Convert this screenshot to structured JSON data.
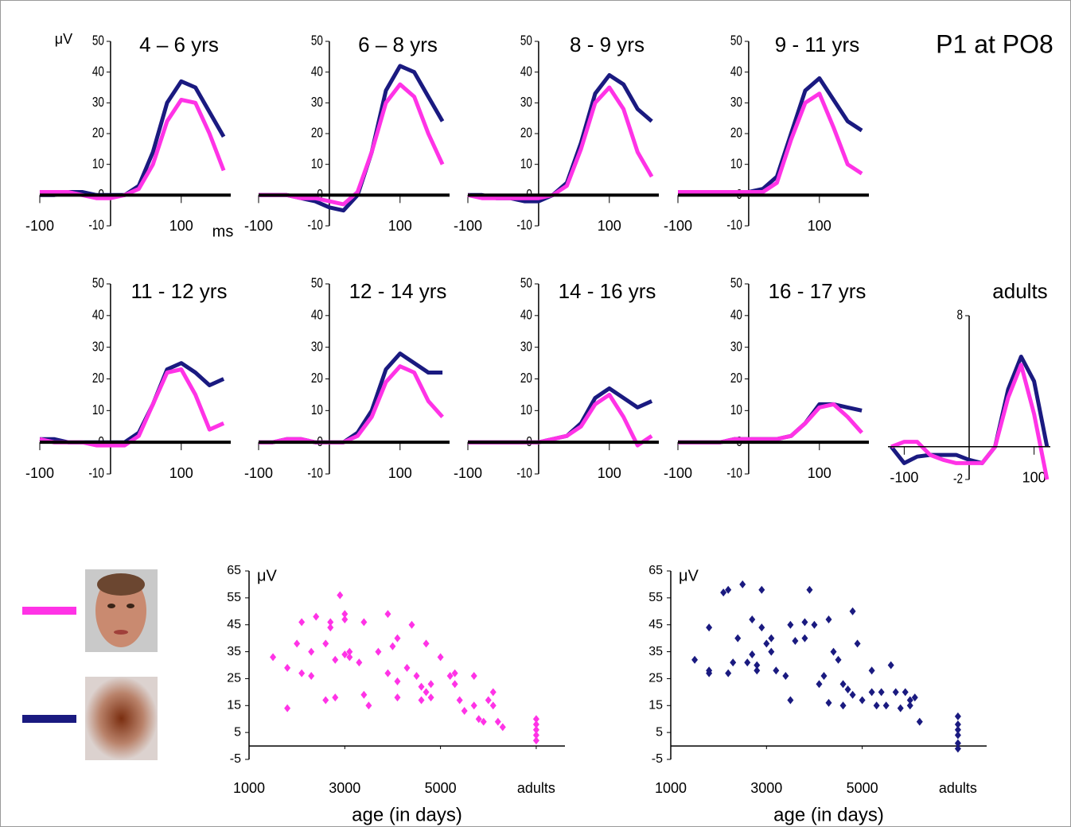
{
  "title": "P1 at PO8",
  "chart_data": [
    {
      "type": "line",
      "title": "4 – 6 yrs",
      "y_label": "μV",
      "x_label": "ms",
      "x": [
        -100,
        -80,
        -60,
        -40,
        -20,
        0,
        20,
        40,
        60,
        80,
        100,
        120,
        140,
        160
      ],
      "xlim": [
        -100,
        170
      ],
      "ylim": [
        -10,
        50
      ],
      "xticks": [
        -100,
        100
      ],
      "yticks": [
        -10,
        0,
        10,
        20,
        30,
        40,
        50
      ],
      "series": [
        {
          "color": "#1a1a80",
          "values": [
            0,
            0,
            1,
            1,
            0,
            0,
            0,
            3,
            14,
            30,
            37,
            35,
            27,
            19
          ]
        },
        {
          "color": "#ff33e6",
          "values": [
            1,
            1,
            1,
            0,
            -1,
            -1,
            0,
            2,
            10,
            24,
            31,
            30,
            20,
            8
          ]
        }
      ]
    },
    {
      "type": "line",
      "title": "6 – 8 yrs",
      "x": [
        -100,
        -80,
        -60,
        -40,
        -20,
        0,
        20,
        40,
        60,
        80,
        100,
        120,
        140,
        160
      ],
      "xlim": [
        -100,
        170
      ],
      "ylim": [
        -10,
        50
      ],
      "xticks": [
        -100,
        100
      ],
      "yticks": [
        -10,
        0,
        10,
        20,
        30,
        40,
        50
      ],
      "series": [
        {
          "color": "#1a1a80",
          "values": [
            0,
            0,
            0,
            -1,
            -2,
            -4,
            -5,
            0,
            14,
            34,
            42,
            40,
            32,
            24
          ]
        },
        {
          "color": "#ff33e6",
          "values": [
            0,
            0,
            0,
            -1,
            -1,
            -2,
            -3,
            1,
            14,
            30,
            36,
            32,
            20,
            10
          ]
        }
      ]
    },
    {
      "type": "line",
      "title": "8 - 9 yrs",
      "x": [
        -100,
        -80,
        -60,
        -40,
        -20,
        0,
        20,
        40,
        60,
        80,
        100,
        120,
        140,
        160
      ],
      "xlim": [
        -100,
        170
      ],
      "ylim": [
        -10,
        50
      ],
      "xticks": [
        -100,
        100
      ],
      "yticks": [
        -10,
        0,
        10,
        20,
        30,
        40,
        50
      ],
      "series": [
        {
          "color": "#1a1a80",
          "values": [
            0,
            0,
            -1,
            -1,
            -2,
            -2,
            0,
            4,
            17,
            33,
            39,
            36,
            28,
            24
          ]
        },
        {
          "color": "#ff33e6",
          "values": [
            0,
            -1,
            -1,
            -1,
            -1,
            -1,
            0,
            3,
            15,
            30,
            35,
            28,
            14,
            6
          ]
        }
      ]
    },
    {
      "type": "line",
      "title": "9 - 11 yrs",
      "x": [
        -100,
        -80,
        -60,
        -40,
        -20,
        0,
        20,
        40,
        60,
        80,
        100,
        120,
        140,
        160
      ],
      "xlim": [
        -100,
        170
      ],
      "ylim": [
        -10,
        50
      ],
      "xticks": [
        -100,
        100
      ],
      "yticks": [
        -10,
        0,
        10,
        20,
        30,
        40,
        50
      ],
      "series": [
        {
          "color": "#1a1a80",
          "values": [
            1,
            1,
            1,
            1,
            1,
            1,
            2,
            6,
            20,
            34,
            38,
            31,
            24,
            21
          ]
        },
        {
          "color": "#ff33e6",
          "values": [
            1,
            1,
            1,
            1,
            1,
            1,
            1,
            4,
            18,
            30,
            33,
            22,
            10,
            7
          ]
        }
      ]
    },
    {
      "type": "line",
      "title": "11 - 12 yrs",
      "x": [
        -100,
        -80,
        -60,
        -40,
        -20,
        0,
        20,
        40,
        60,
        80,
        100,
        120,
        140,
        160
      ],
      "xlim": [
        -100,
        170
      ],
      "ylim": [
        -10,
        50
      ],
      "xticks": [
        -100,
        100
      ],
      "yticks": [
        -10,
        0,
        10,
        20,
        30,
        40,
        50
      ],
      "series": [
        {
          "color": "#1a1a80",
          "values": [
            1,
            1,
            0,
            0,
            0,
            0,
            0,
            3,
            12,
            23,
            25,
            22,
            18,
            20
          ]
        },
        {
          "color": "#ff33e6",
          "values": [
            1,
            0,
            0,
            0,
            -1,
            -1,
            -1,
            2,
            12,
            22,
            23,
            15,
            4,
            6
          ]
        }
      ]
    },
    {
      "type": "line",
      "title": "12 - 14 yrs",
      "x": [
        -100,
        -80,
        -60,
        -40,
        -20,
        0,
        20,
        40,
        60,
        80,
        100,
        120,
        140,
        160
      ],
      "xlim": [
        -100,
        170
      ],
      "ylim": [
        -10,
        50
      ],
      "xticks": [
        -100,
        100
      ],
      "yticks": [
        -10,
        0,
        10,
        20,
        30,
        40,
        50
      ],
      "series": [
        {
          "color": "#1a1a80",
          "values": [
            0,
            0,
            1,
            1,
            0,
            0,
            0,
            3,
            10,
            23,
            28,
            25,
            22,
            22
          ]
        },
        {
          "color": "#ff33e6",
          "values": [
            0,
            0,
            1,
            1,
            0,
            0,
            0,
            2,
            8,
            19,
            24,
            22,
            13,
            8
          ]
        }
      ]
    },
    {
      "type": "line",
      "title": "14 - 16 yrs",
      "x": [
        -100,
        -80,
        -60,
        -40,
        -20,
        0,
        20,
        40,
        60,
        80,
        100,
        120,
        140,
        160
      ],
      "xlim": [
        -100,
        170
      ],
      "ylim": [
        -10,
        50
      ],
      "xticks": [
        -100,
        100
      ],
      "yticks": [
        -10,
        0,
        10,
        20,
        30,
        40,
        50
      ],
      "series": [
        {
          "color": "#1a1a80",
          "values": [
            0,
            0,
            0,
            0,
            0,
            0,
            1,
            2,
            6,
            14,
            17,
            14,
            11,
            13
          ]
        },
        {
          "color": "#ff33e6",
          "values": [
            0,
            0,
            0,
            0,
            0,
            0,
            1,
            2,
            5,
            12,
            15,
            8,
            -1,
            2
          ]
        }
      ]
    },
    {
      "type": "line",
      "title": "16 - 17 yrs",
      "x": [
        -100,
        -80,
        -60,
        -40,
        -20,
        0,
        20,
        40,
        60,
        80,
        100,
        120,
        140,
        160
      ],
      "xlim": [
        -100,
        170
      ],
      "ylim": [
        -10,
        50
      ],
      "xticks": [
        -100,
        100
      ],
      "yticks": [
        -10,
        0,
        10,
        20,
        30,
        40,
        50
      ],
      "series": [
        {
          "color": "#1a1a80",
          "values": [
            0,
            0,
            0,
            0,
            1,
            1,
            1,
            1,
            2,
            6,
            12,
            12,
            11,
            10
          ]
        },
        {
          "color": "#ff33e6",
          "values": [
            0,
            0,
            0,
            0,
            1,
            1,
            1,
            1,
            2,
            6,
            11,
            12,
            8,
            3
          ]
        }
      ]
    },
    {
      "type": "line",
      "title": "adults",
      "x": [
        -120,
        -100,
        -80,
        -60,
        -40,
        -20,
        0,
        20,
        40,
        60,
        80,
        100,
        120
      ],
      "xlim": [
        -125,
        125
      ],
      "ylim": [
        -2,
        8
      ],
      "xticks": [
        -100,
        100
      ],
      "yticks": [
        -2,
        8
      ],
      "series": [
        {
          "color": "#1a1a80",
          "values": [
            0,
            -1,
            -0.6,
            -0.5,
            -0.5,
            -0.5,
            -0.8,
            -1,
            0,
            3.5,
            5.5,
            4,
            0
          ]
        },
        {
          "color": "#ff33e6",
          "values": [
            0,
            0.3,
            0.3,
            -0.5,
            -0.8,
            -1,
            -1,
            -1,
            0,
            3,
            5,
            2,
            -2
          ]
        }
      ]
    },
    {
      "type": "scatter",
      "y_label": "μV",
      "x_label": "age (in days)",
      "xlim": [
        1000,
        7600
      ],
      "ylim": [
        -5,
        65
      ],
      "xticks": [
        1000,
        3000,
        5000,
        {
          "value": 7000,
          "label": "adults"
        }
      ],
      "yticks": [
        -5,
        5,
        15,
        25,
        35,
        45,
        55,
        65
      ],
      "series": [
        {
          "color": "#ff33e6",
          "x": [
            1500,
            1800,
            1800,
            2000,
            2100,
            2100,
            2300,
            2300,
            2400,
            2600,
            2600,
            2700,
            2700,
            2800,
            2900,
            2800,
            3000,
            3000,
            3000,
            3100,
            3100,
            3300,
            3400,
            3400,
            3500,
            3700,
            3900,
            3900,
            4000,
            4100,
            4100,
            4100,
            4300,
            4400,
            4500,
            4600,
            4600,
            4700,
            4700,
            4800,
            4800,
            5000,
            5200,
            5300,
            5300,
            5400,
            5500,
            5700,
            5700,
            5800,
            5900,
            6000,
            6100,
            6100,
            6200,
            6300,
            7000,
            7000,
            7000,
            7000,
            7000
          ],
          "values": [
            33,
            29,
            14,
            38,
            46,
            27,
            26,
            35,
            48,
            38,
            17,
            46,
            44,
            18,
            56,
            32,
            47,
            49,
            34,
            35,
            33,
            31,
            46,
            19,
            15,
            35,
            49,
            27,
            37,
            40,
            24,
            18,
            29,
            45,
            26,
            22,
            17,
            38,
            20,
            23,
            18,
            33,
            26,
            27,
            23,
            17,
            13,
            26,
            15,
            10,
            9,
            17,
            20,
            15,
            9,
            7,
            10,
            8,
            6,
            4,
            2
          ]
        }
      ]
    },
    {
      "type": "scatter",
      "y_label": "μV",
      "x_label": "age (in days)",
      "xlim": [
        1000,
        7600
      ],
      "ylim": [
        -5,
        65
      ],
      "xticks": [
        1000,
        3000,
        5000,
        {
          "value": 7000,
          "label": "adults"
        }
      ],
      "yticks": [
        -5,
        5,
        15,
        25,
        35,
        45,
        55,
        65
      ],
      "series": [
        {
          "color": "#1a1a80",
          "x": [
            1500,
            1800,
            1800,
            1800,
            2100,
            2200,
            2200,
            2300,
            2400,
            2500,
            2600,
            2700,
            2700,
            2800,
            2800,
            2900,
            2900,
            3000,
            3100,
            3100,
            3200,
            3400,
            3500,
            3500,
            3600,
            3800,
            3800,
            3900,
            4000,
            4100,
            4200,
            4300,
            4300,
            4400,
            4500,
            4600,
            4600,
            4700,
            4800,
            4800,
            4900,
            5000,
            5200,
            5200,
            5300,
            5400,
            5500,
            5600,
            5700,
            5800,
            5900,
            6000,
            6000,
            6100,
            6200,
            7000,
            7000,
            7000,
            7000,
            7000,
            7000
          ],
          "values": [
            32,
            44,
            28,
            27,
            57,
            58,
            27,
            31,
            40,
            60,
            31,
            47,
            34,
            28,
            30,
            58,
            44,
            38,
            35,
            40,
            28,
            26,
            45,
            17,
            39,
            40,
            46,
            58,
            45,
            23,
            26,
            16,
            47,
            35,
            32,
            23,
            15,
            21,
            50,
            19,
            38,
            17,
            28,
            20,
            15,
            20,
            15,
            30,
            20,
            14,
            20,
            17,
            15,
            18,
            9,
            11,
            8,
            6,
            4,
            1,
            -1
          ]
        }
      ]
    }
  ]
}
